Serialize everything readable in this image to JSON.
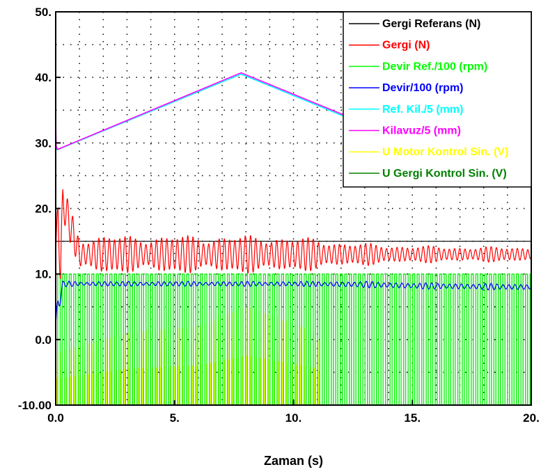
{
  "chart_data": {
    "type": "line",
    "title": "",
    "xlabel": "Zaman (s)",
    "ylabel": "",
    "xlim": [
      0,
      20
    ],
    "ylim": [
      -10,
      50
    ],
    "x_tick_labels": [
      "0.0",
      "5.",
      "10.",
      "15.",
      "20."
    ],
    "x_tick_values": [
      0,
      5,
      10,
      15,
      20
    ],
    "y_tick_labels": [
      "-10.00",
      "0.0",
      "10.",
      "20.",
      "30.",
      "40.",
      "50."
    ],
    "y_tick_values": [
      -10,
      0,
      10,
      20,
      30,
      40,
      50
    ],
    "grid": true,
    "legend_position": "top-right",
    "series": [
      {
        "name": "Gergi Referans (N)",
        "color": "#000000",
        "x": [
          0,
          20
        ],
        "y": [
          15,
          15
        ]
      },
      {
        "name": "Gergi (N)",
        "color": "#ff0000",
        "kind": "oscillation",
        "x": [
          0,
          0.1,
          0.2,
          0.3,
          1,
          3,
          6,
          9,
          11,
          12,
          14,
          17,
          20
        ],
        "y": [
          13,
          19,
          11,
          21,
          13,
          13,
          13,
          13,
          13,
          13,
          13,
          13,
          13
        ],
        "amplitude": [
          2,
          4,
          4,
          3,
          3,
          3,
          3,
          3,
          2.5,
          2,
          1.5,
          1.2,
          1.2
        ],
        "period": 0.22
      },
      {
        "name": "Devir Ref./100 (rpm)",
        "color": "#00ff00",
        "kind": "square",
        "x": [
          0,
          20
        ],
        "y": [
          10,
          10
        ],
        "low": -10,
        "high": 10,
        "period": 0.19
      },
      {
        "name": "Devir/100 (rpm)",
        "color": "#0000ff",
        "kind": "oscillation",
        "x": [
          0,
          0.1,
          0.3,
          1,
          5,
          10,
          13,
          15,
          20
        ],
        "y": [
          2,
          5,
          8.5,
          8.5,
          8.5,
          8.5,
          8.4,
          8.2,
          8.0
        ],
        "amplitude": [
          2,
          2,
          0.5,
          0.4,
          0.4,
          0.4,
          0.5,
          0.5,
          0.5
        ],
        "period": 0.25
      },
      {
        "name": "Ref. Kil./5 (mm)",
        "color": "#00ffff",
        "x": [
          0,
          0.1,
          7.8,
          12.5
        ],
        "y": [
          29,
          29,
          40.5,
          33.5
        ]
      },
      {
        "name": "Kilavuz/5 (mm)",
        "color": "#ff00ff",
        "x": [
          0,
          0.02,
          0.08,
          0.2,
          7.8,
          12.5
        ],
        "y": [
          33.5,
          29.5,
          29,
          29.2,
          40.7,
          33.7
        ]
      },
      {
        "name": "U Motor Kontrol Sin. (V)",
        "color": "#ffff00",
        "kind": "spikes",
        "x": [
          0,
          3,
          6,
          8,
          11,
          11.2,
          20
        ],
        "y": [
          -10,
          -10,
          -10,
          -10,
          -10,
          -10,
          -10
        ],
        "peak": [
          -2,
          1,
          2,
          5,
          1,
          -10,
          -10
        ],
        "period": 0.19
      },
      {
        "name": "U Gergi Kontrol Sin. (V)",
        "color": "#008000",
        "kind": "square",
        "x": [
          0,
          20
        ],
        "y": [
          10,
          10
        ],
        "low": -10,
        "high": 10,
        "period": 0.19
      }
    ]
  }
}
